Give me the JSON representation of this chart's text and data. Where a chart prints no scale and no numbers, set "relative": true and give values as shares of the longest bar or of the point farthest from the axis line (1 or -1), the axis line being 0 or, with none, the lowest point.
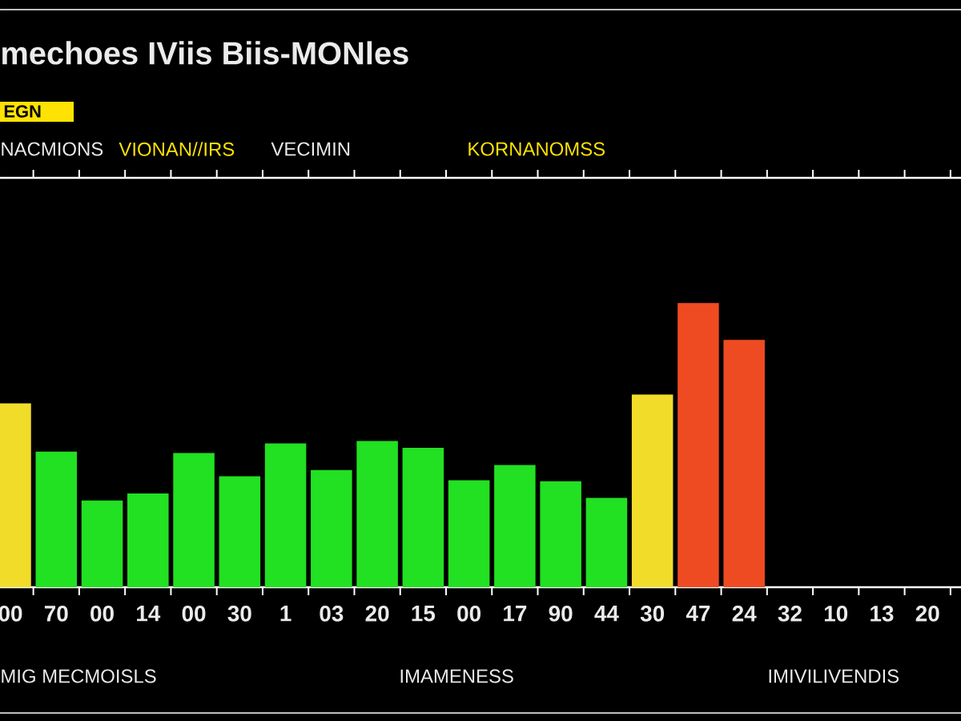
{
  "chart_data": {
    "type": "bar",
    "title": "mechoes IViis Biis-MONles",
    "categories": [
      "00",
      "70",
      "00",
      "14",
      "00",
      "30",
      "1",
      "03",
      "20",
      "15",
      "00",
      "17",
      "90",
      "44",
      "30",
      "47",
      "24",
      "32",
      "10",
      "13",
      "20"
    ],
    "values": [
      0.647,
      0.477,
      0.305,
      0.33,
      0.472,
      0.39,
      0.506,
      0.412,
      0.514,
      0.49,
      0.376,
      0.43,
      0.373,
      0.314,
      0.678,
      1,
      0.87,
      null,
      null,
      null,
      null
    ],
    "colors": [
      "#f2dc2a",
      "#22e022",
      "#22e022",
      "#22e022",
      "#22e022",
      "#22e022",
      "#22e022",
      "#22e022",
      "#22e022",
      "#22e022",
      "#22e022",
      "#22e022",
      "#22e022",
      "#22e022",
      "#f2dc2a",
      "#ef4b23",
      "#ef4b23",
      null,
      null,
      null,
      null
    ],
    "relative": true,
    "annotations": [
      "EGN",
      "NACMIONS",
      "VIONAN//IRS",
      "VECIMIN",
      "KORNANOMSS",
      "MIG MECMOISLS",
      "IMAMENESS",
      "IMIVILIVENDIS"
    ]
  }
}
